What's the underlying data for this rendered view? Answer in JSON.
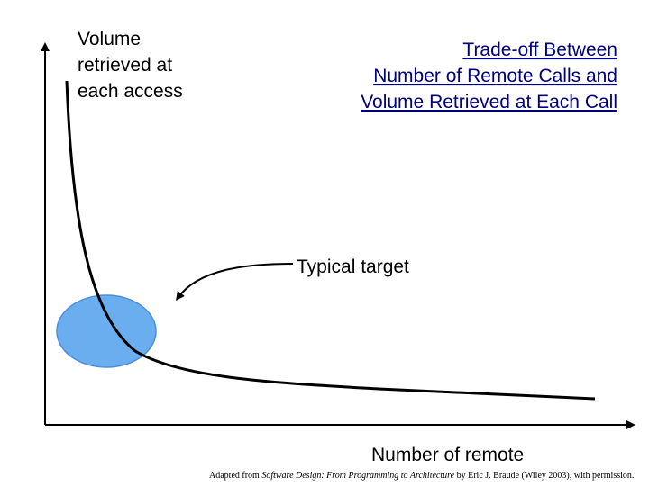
{
  "y_axis_label": [
    "Volume",
    "retrieved at",
    "each access"
  ],
  "title": [
    "Trade-off Between",
    "Number of Remote Calls and",
    "Volume Retrieved at Each Call"
  ],
  "annotation": "Typical target",
  "x_axis_label": "Number of remote",
  "credit": {
    "before": "Adapted from ",
    "book": "Software Design: From Programming to Architecture",
    "after": " by Eric J. Braude (Wiley 2003), with permission."
  }
}
